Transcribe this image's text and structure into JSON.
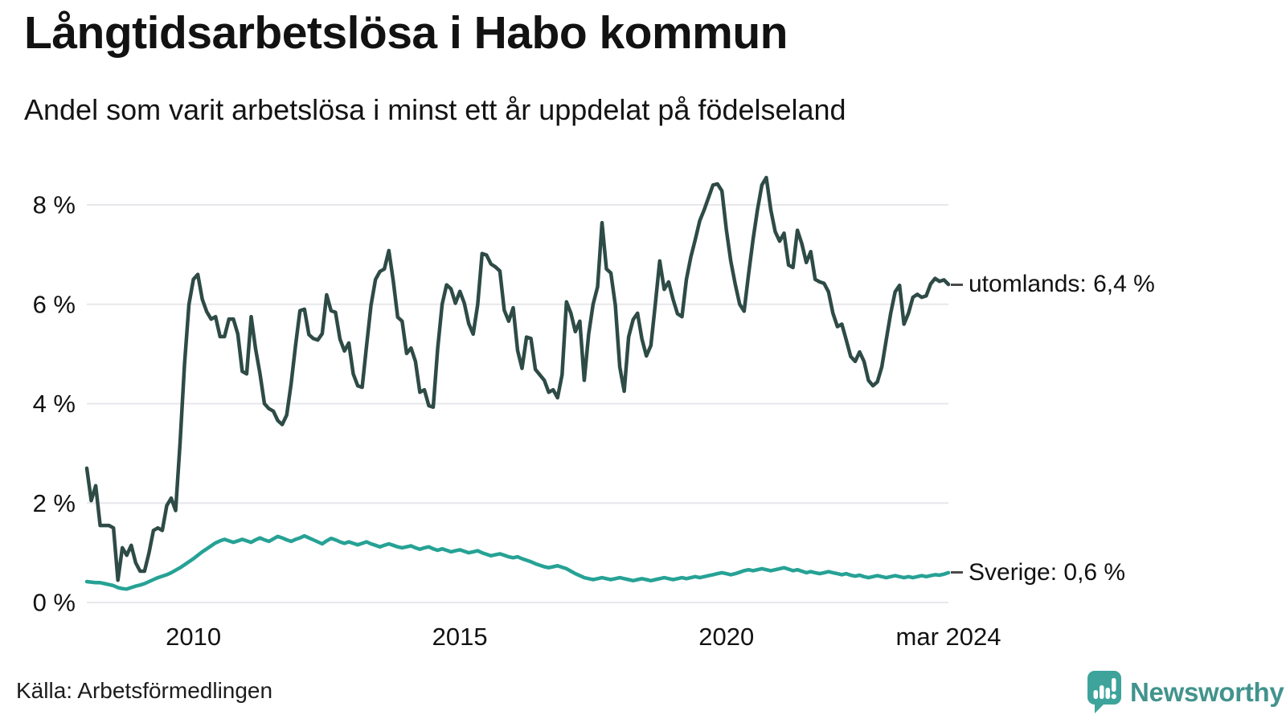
{
  "header": {
    "title": "Långtidsarbetslösa i Habo kommun",
    "subtitle": "Andel som varit arbetslösa i minst ett år uppdelat på födelseland"
  },
  "chart_data": {
    "type": "line",
    "x_unit": "month",
    "x_start": "2008-01",
    "x_end": "2024-03",
    "grid": "horizontal",
    "grid_color": "#e7e7ec",
    "ylim": [
      0,
      8.7
    ],
    "y_ticks": [
      0,
      2,
      4,
      6,
      8
    ],
    "y_tick_labels": [
      "0 %",
      "2 %",
      "4 %",
      "6 %",
      "8 %"
    ],
    "x_ticks": [
      {
        "label": "2010",
        "month_index": 24
      },
      {
        "label": "2015",
        "month_index": 84
      },
      {
        "label": "2020",
        "month_index": 144
      },
      {
        "label": "mar 2024",
        "month_index": 194
      }
    ],
    "series": [
      {
        "name": "utomlands",
        "color": "#2e4b46",
        "end_label": "utomlands: 6,4 %",
        "last_value": 6.4,
        "values": [
          2.7,
          2.05,
          2.35,
          1.55,
          1.55,
          1.55,
          1.5,
          0.45,
          1.1,
          0.95,
          1.15,
          0.8,
          0.63,
          0.63,
          1.0,
          1.45,
          1.5,
          1.45,
          1.95,
          2.1,
          1.85,
          3.2,
          4.8,
          6.0,
          6.5,
          6.6,
          6.1,
          5.85,
          5.7,
          5.75,
          5.35,
          5.35,
          5.7,
          5.7,
          5.4,
          4.65,
          4.6,
          5.75,
          5.1,
          4.6,
          4.0,
          3.9,
          3.85,
          3.66,
          3.58,
          3.77,
          4.4,
          5.17,
          5.87,
          5.9,
          5.39,
          5.31,
          5.28,
          5.41,
          6.19,
          5.87,
          5.84,
          5.3,
          5.06,
          5.22,
          4.6,
          4.36,
          4.33,
          5.17,
          5.98,
          6.5,
          6.66,
          6.71,
          7.08,
          6.47,
          5.74,
          5.66,
          5.01,
          5.12,
          4.85,
          4.23,
          4.28,
          3.96,
          3.93,
          5.1,
          6.0,
          6.39,
          6.31,
          6.02,
          6.26,
          6.02,
          5.61,
          5.4,
          5.99,
          7.02,
          6.99,
          6.81,
          6.75,
          6.67,
          5.88,
          5.66,
          5.93,
          5.07,
          4.71,
          5.34,
          5.31,
          4.69,
          4.58,
          4.47,
          4.23,
          4.28,
          4.12,
          4.58,
          6.05,
          5.82,
          5.45,
          5.66,
          4.47,
          5.4,
          6.0,
          6.35,
          7.64,
          6.71,
          6.63,
          5.98,
          4.74,
          4.25,
          5.34,
          5.69,
          5.82,
          5.3,
          4.96,
          5.17,
          6.0,
          6.87,
          6.3,
          6.45,
          6.1,
          5.81,
          5.75,
          6.5,
          6.95,
          7.3,
          7.68,
          7.9,
          8.15,
          8.4,
          8.42,
          8.28,
          7.5,
          6.87,
          6.4,
          6.0,
          5.86,
          6.6,
          7.3,
          7.9,
          8.4,
          8.55,
          7.9,
          7.46,
          7.27,
          7.43,
          6.79,
          6.74,
          7.49,
          7.22,
          6.84,
          7.06,
          6.5,
          6.45,
          6.42,
          6.25,
          5.82,
          5.55,
          5.6,
          5.28,
          4.95,
          4.85,
          5.04,
          4.85,
          4.47,
          4.36,
          4.44,
          4.74,
          5.28,
          5.82,
          6.25,
          6.38,
          5.6,
          5.82,
          6.14,
          6.2,
          6.14,
          6.17,
          6.41,
          6.52,
          6.46,
          6.49,
          6.4
        ]
      },
      {
        "name": "Sverige",
        "color": "#26a295",
        "end_label": "Sverige: 0,6 %",
        "last_value": 0.6,
        "values": [
          0.42,
          0.41,
          0.4,
          0.4,
          0.38,
          0.36,
          0.34,
          0.3,
          0.28,
          0.27,
          0.3,
          0.33,
          0.35,
          0.38,
          0.42,
          0.46,
          0.5,
          0.53,
          0.56,
          0.6,
          0.65,
          0.7,
          0.76,
          0.82,
          0.88,
          0.95,
          1.02,
          1.08,
          1.14,
          1.2,
          1.24,
          1.27,
          1.24,
          1.21,
          1.24,
          1.27,
          1.24,
          1.21,
          1.26,
          1.3,
          1.26,
          1.23,
          1.28,
          1.33,
          1.3,
          1.26,
          1.23,
          1.27,
          1.3,
          1.34,
          1.3,
          1.26,
          1.22,
          1.18,
          1.24,
          1.29,
          1.26,
          1.22,
          1.19,
          1.22,
          1.19,
          1.16,
          1.19,
          1.22,
          1.18,
          1.15,
          1.12,
          1.15,
          1.18,
          1.15,
          1.12,
          1.1,
          1.12,
          1.14,
          1.1,
          1.07,
          1.1,
          1.12,
          1.08,
          1.05,
          1.08,
          1.05,
          1.02,
          1.04,
          1.06,
          1.03,
          1.0,
          1.02,
          1.04,
          1.0,
          0.97,
          0.94,
          0.96,
          0.98,
          0.95,
          0.92,
          0.9,
          0.92,
          0.88,
          0.85,
          0.82,
          0.78,
          0.75,
          0.72,
          0.7,
          0.72,
          0.74,
          0.71,
          0.68,
          0.63,
          0.58,
          0.54,
          0.5,
          0.48,
          0.46,
          0.48,
          0.5,
          0.48,
          0.46,
          0.48,
          0.5,
          0.48,
          0.46,
          0.44,
          0.46,
          0.48,
          0.46,
          0.44,
          0.46,
          0.48,
          0.5,
          0.48,
          0.46,
          0.48,
          0.5,
          0.48,
          0.5,
          0.52,
          0.5,
          0.52,
          0.54,
          0.56,
          0.58,
          0.6,
          0.58,
          0.56,
          0.58,
          0.61,
          0.64,
          0.66,
          0.64,
          0.66,
          0.68,
          0.66,
          0.64,
          0.66,
          0.68,
          0.7,
          0.67,
          0.64,
          0.66,
          0.63,
          0.6,
          0.62,
          0.6,
          0.58,
          0.6,
          0.62,
          0.6,
          0.58,
          0.56,
          0.58,
          0.55,
          0.53,
          0.55,
          0.52,
          0.5,
          0.52,
          0.54,
          0.52,
          0.5,
          0.52,
          0.54,
          0.52,
          0.5,
          0.52,
          0.5,
          0.52,
          0.54,
          0.52,
          0.54,
          0.56,
          0.55,
          0.57,
          0.6
        ]
      }
    ]
  },
  "footer": {
    "source": "Källa: Arbetsförmedlingen",
    "brand": "Newsworthy",
    "brand_color": "#42938d",
    "logo_color": "#3ea49b"
  }
}
